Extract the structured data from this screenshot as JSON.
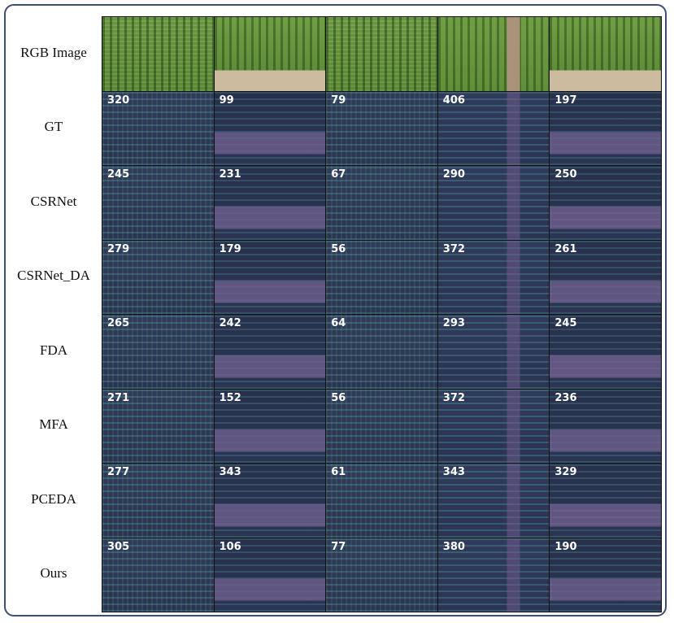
{
  "rows": [
    {
      "label": "RGB Image"
    },
    {
      "label": "GT",
      "counts": [
        320,
        99,
        79,
        406,
        197
      ]
    },
    {
      "label": "CSRNet",
      "counts": [
        245,
        231,
        67,
        290,
        250
      ]
    },
    {
      "label": "CSRNet_DA",
      "counts": [
        279,
        179,
        56,
        372,
        261
      ]
    },
    {
      "label": "FDA",
      "counts": [
        265,
        242,
        64,
        293,
        245
      ]
    },
    {
      "label": "MFA",
      "counts": [
        271,
        152,
        56,
        372,
        236
      ]
    },
    {
      "label": "PCEDA",
      "counts": [
        277,
        343,
        61,
        343,
        329
      ]
    },
    {
      "label": "Ours",
      "counts": [
        305,
        106,
        77,
        380,
        190
      ]
    }
  ]
}
